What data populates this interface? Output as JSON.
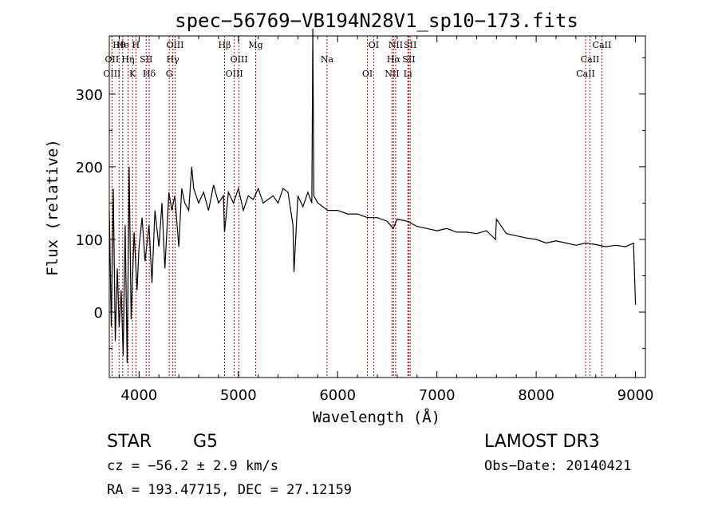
{
  "chart_data": {
    "type": "line",
    "title": "spec−56769−VB194N28V1_sp10−173.fits",
    "xlabel": "Wavelength (Å)",
    "ylabel": "Flux (relative)",
    "xlim": [
      3700,
      9100
    ],
    "ylim": [
      -90,
      380
    ],
    "x_ticks": [
      4000,
      5000,
      6000,
      7000,
      8000,
      9000
    ],
    "y_ticks": [
      0,
      100,
      200,
      300
    ],
    "grid": false,
    "series": [
      {
        "name": "flux",
        "x": [
          3700,
          3720,
          3740,
          3760,
          3780,
          3800,
          3820,
          3840,
          3860,
          3880,
          3900,
          3920,
          3950,
          3980,
          4000,
          4030,
          4060,
          4100,
          4130,
          4160,
          4200,
          4230,
          4260,
          4300,
          4330,
          4360,
          4400,
          4430,
          4460,
          4500,
          4530,
          4550,
          4600,
          4650,
          4700,
          4750,
          4800,
          4850,
          4860,
          4900,
          4950,
          5000,
          5050,
          5100,
          5150,
          5200,
          5250,
          5300,
          5350,
          5400,
          5450,
          5500,
          5550,
          5560,
          5600,
          5650,
          5700,
          5740,
          5750,
          5760,
          5800,
          5850,
          5900,
          6000,
          6100,
          6200,
          6300,
          6400,
          6500,
          6560,
          6600,
          6700,
          6800,
          6900,
          7000,
          7100,
          7200,
          7300,
          7400,
          7500,
          7590,
          7600,
          7700,
          7800,
          7900,
          8000,
          8100,
          8200,
          8300,
          8400,
          8500,
          8600,
          8700,
          8800,
          8900,
          8980,
          9000
        ],
        "y": [
          140,
          -20,
          170,
          -40,
          60,
          -20,
          30,
          -60,
          120,
          -70,
          200,
          -10,
          110,
          30,
          90,
          130,
          70,
          120,
          40,
          140,
          90,
          150,
          60,
          165,
          140,
          160,
          90,
          170,
          150,
          140,
          200,
          170,
          150,
          165,
          140,
          175,
          150,
          160,
          110,
          165,
          150,
          170,
          140,
          160,
          155,
          170,
          150,
          155,
          160,
          150,
          170,
          165,
          120,
          55,
          160,
          145,
          165,
          150,
          390,
          160,
          150,
          145,
          140,
          140,
          135,
          135,
          130,
          130,
          125,
          115,
          128,
          125,
          118,
          115,
          112,
          115,
          110,
          110,
          108,
          112,
          100,
          128,
          108,
          105,
          102,
          100,
          95,
          98,
          95,
          92,
          95,
          93,
          90,
          92,
          90,
          95,
          10
        ]
      }
    ],
    "lines": [
      {
        "label": "Hθ",
        "x": 3798
      },
      {
        "label": "OII",
        "x": 3727
      },
      {
        "label": "OIII",
        "x": 3727
      },
      {
        "label": "He",
        "x": 3835
      },
      {
        "label": "Hη",
        "x": 3889
      },
      {
        "label": "K",
        "x": 3934
      },
      {
        "label": "H",
        "x": 3968
      },
      {
        "label": "SII",
        "x": 4072
      },
      {
        "label": "Hδ",
        "x": 4102
      },
      {
        "label": "OIII",
        "x": 4363
      },
      {
        "label": "Hγ",
        "x": 4340
      },
      {
        "label": "G",
        "x": 4304
      },
      {
        "label": "Hβ",
        "x": 4861
      },
      {
        "label": "OIII",
        "x": 5007
      },
      {
        "label": "OIII",
        "x": 4959
      },
      {
        "label": "Mg",
        "x": 5175
      },
      {
        "label": "Na",
        "x": 5893
      },
      {
        "label": "OI",
        "x": 6300
      },
      {
        "label": "OI",
        "x": 6363
      },
      {
        "label": "Hα",
        "x": 6563
      },
      {
        "label": "NII",
        "x": 6548
      },
      {
        "label": "NII",
        "x": 6584
      },
      {
        "label": "SII",
        "x": 6717
      },
      {
        "label": "Li",
        "x": 6707
      },
      {
        "label": "SII",
        "x": 6731
      },
      {
        "label": "CaII",
        "x": 8542
      },
      {
        "label": "CaII",
        "x": 8498
      },
      {
        "label": "CaII",
        "x": 8662
      }
    ]
  },
  "info": {
    "class": "STAR",
    "subclass": "G5",
    "survey": "LAMOST DR3",
    "cz": "cz = −56.2 ± 2.9 km/s",
    "obs_date": "Obs−Date: 20140421",
    "coords": "RA = 193.47715, DEC =  27.12159"
  },
  "colors": {
    "spectrum": "#000000",
    "line_marker": "#cc0000",
    "axes": "#000000"
  }
}
